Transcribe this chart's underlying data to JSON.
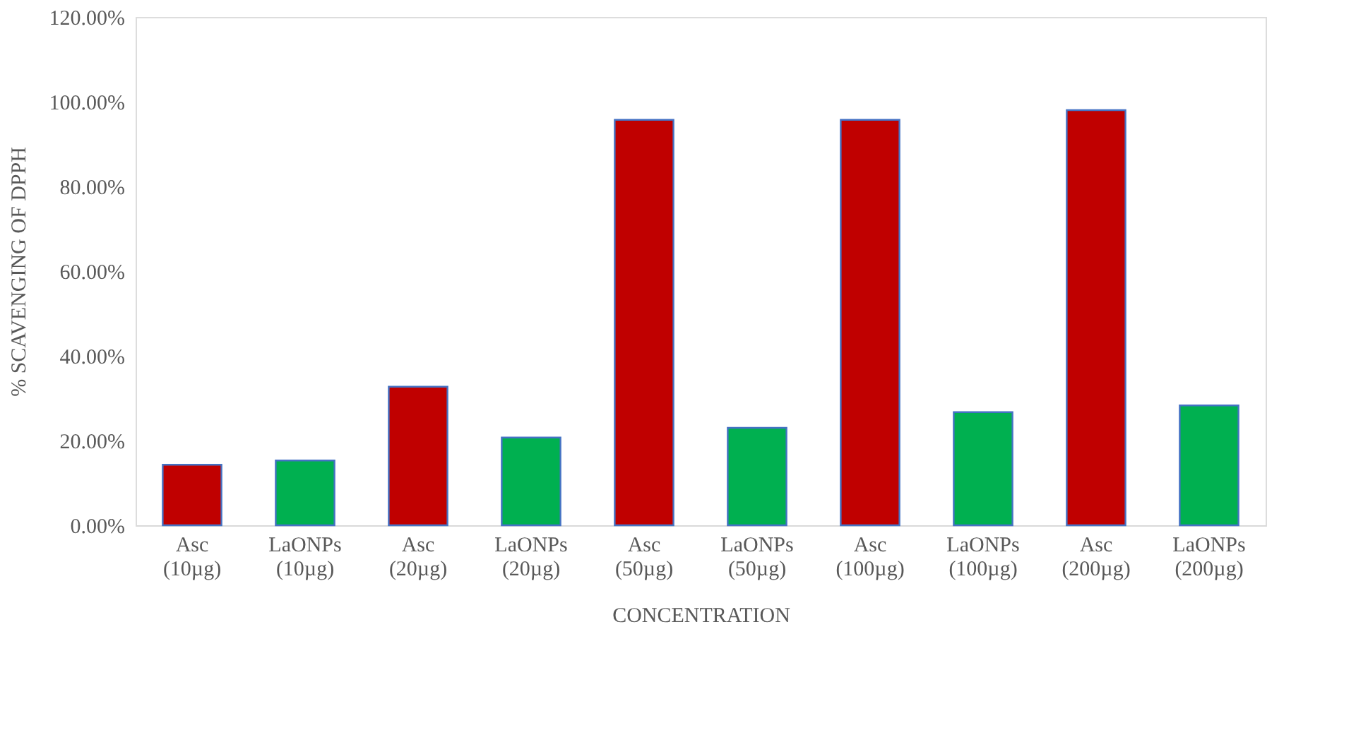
{
  "chart_data": {
    "type": "bar",
    "xlabel": "CONCENTRATION",
    "ylabel": "% SCAVENGING OF DPPH",
    "categories": [
      "Asc (10µg)",
      "LaONPs (10µg)",
      "Asc (20µg)",
      "LaONPs (20µg)",
      "Asc (50µg)",
      "LaONPs (50µg)",
      "Asc (100µg)",
      "LaONPs (100µg)",
      "Asc (200µg)",
      "LaONPs (200µg)"
    ],
    "values": [
      14.3,
      15.3,
      32.7,
      20.7,
      95.7,
      23.0,
      95.7,
      26.7,
      98.0,
      28.3
    ],
    "colors": [
      "#c00000",
      "#00b050",
      "#c00000",
      "#00b050",
      "#c00000",
      "#00b050",
      "#c00000",
      "#00b050",
      "#c00000",
      "#00b050"
    ],
    "ylim": [
      0,
      120
    ],
    "yticks": [
      {
        "value": 0,
        "label": "0.00%"
      },
      {
        "value": 20,
        "label": "20.00%"
      },
      {
        "value": 40,
        "label": "40.00%"
      },
      {
        "value": 60,
        "label": "60.00%"
      },
      {
        "value": 80,
        "label": "80.00%"
      },
      {
        "value": 100,
        "label": "100.00%"
      },
      {
        "value": 120,
        "label": "120.00%"
      }
    ],
    "grid": false
  }
}
